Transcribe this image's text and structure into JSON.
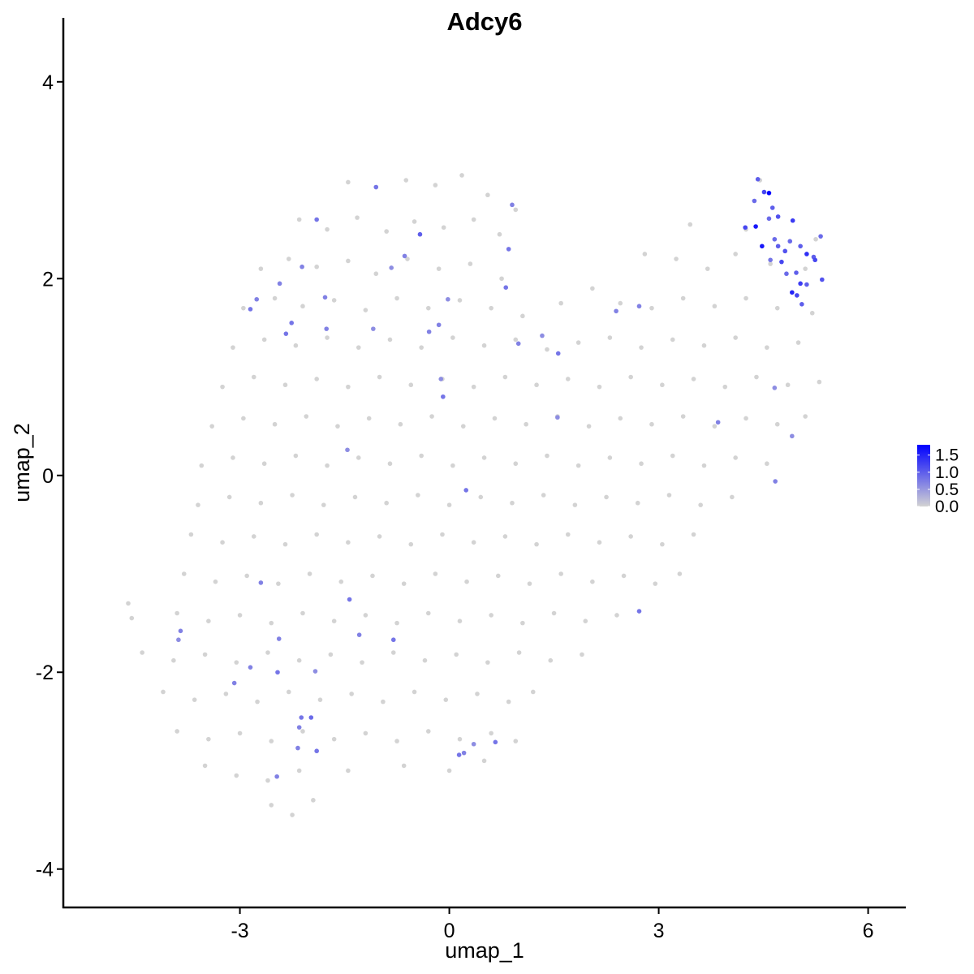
{
  "chart_data": {
    "type": "scatter",
    "title": "Adcy6",
    "xlabel": "umap_1",
    "ylabel": "umap_2",
    "xlim": [
      -5.53,
      6.54
    ],
    "ylim": [
      -4.39,
      4.65
    ],
    "x_ticks": [
      "-3",
      "0",
      "3",
      "6"
    ],
    "y_ticks": [
      "-4",
      "-2",
      "0",
      "2",
      "4"
    ],
    "grid": false,
    "legend": {
      "placement": "right",
      "type": "colorbar",
      "labels": [
        "1.5",
        "1.0",
        "0.5",
        "0.0"
      ],
      "low_color": "#d3d3d3",
      "high_color": "#0000ff",
      "range": [
        0,
        1.8
      ]
    },
    "note_points": "gray points = expression 0 (sampled); colored points = [x, y, expression]",
    "gray_points": [
      [
        -1.45,
        2.98
      ],
      [
        -1.05,
        2.93
      ],
      [
        -0.62,
        3.0
      ],
      [
        -0.2,
        2.95
      ],
      [
        0.18,
        3.05
      ],
      [
        0.55,
        2.85
      ],
      [
        0.95,
        2.7
      ],
      [
        4.45,
        3.0
      ],
      [
        -2.15,
        2.6
      ],
      [
        -1.75,
        2.5
      ],
      [
        -1.32,
        2.62
      ],
      [
        -0.9,
        2.48
      ],
      [
        -0.5,
        2.58
      ],
      [
        -0.08,
        2.52
      ],
      [
        0.35,
        2.6
      ],
      [
        0.72,
        2.45
      ],
      [
        3.45,
        2.55
      ],
      [
        4.25,
        2.5
      ],
      [
        5.25,
        2.4
      ],
      [
        -2.7,
        2.1
      ],
      [
        -2.3,
        2.2
      ],
      [
        -1.9,
        2.12
      ],
      [
        -1.45,
        2.18
      ],
      [
        -1.05,
        2.05
      ],
      [
        -0.6,
        2.2
      ],
      [
        -0.15,
        2.1
      ],
      [
        0.3,
        2.15
      ],
      [
        0.75,
        2.0
      ],
      [
        2.8,
        2.25
      ],
      [
        3.25,
        2.2
      ],
      [
        3.7,
        2.1
      ],
      [
        4.1,
        2.25
      ],
      [
        4.6,
        2.15
      ],
      [
        5.1,
        2.1
      ],
      [
        -2.95,
        1.7
      ],
      [
        -2.5,
        1.8
      ],
      [
        -2.1,
        1.72
      ],
      [
        -1.65,
        1.78
      ],
      [
        -1.2,
        1.68
      ],
      [
        -0.75,
        1.8
      ],
      [
        -0.3,
        1.7
      ],
      [
        0.15,
        1.78
      ],
      [
        0.6,
        1.7
      ],
      [
        1.05,
        1.62
      ],
      [
        1.6,
        1.75
      ],
      [
        2.05,
        1.9
      ],
      [
        2.45,
        1.75
      ],
      [
        2.9,
        1.7
      ],
      [
        3.35,
        1.8
      ],
      [
        3.8,
        1.72
      ],
      [
        4.25,
        1.8
      ],
      [
        4.7,
        1.7
      ],
      [
        5.2,
        1.65
      ],
      [
        -3.1,
        1.3
      ],
      [
        -2.65,
        1.38
      ],
      [
        -2.2,
        1.32
      ],
      [
        -1.75,
        1.4
      ],
      [
        -1.3,
        1.3
      ],
      [
        -0.85,
        1.38
      ],
      [
        -0.4,
        1.3
      ],
      [
        0.05,
        1.4
      ],
      [
        0.5,
        1.32
      ],
      [
        0.95,
        1.38
      ],
      [
        1.4,
        1.28
      ],
      [
        1.85,
        1.35
      ],
      [
        2.3,
        1.4
      ],
      [
        2.75,
        1.3
      ],
      [
        3.2,
        1.38
      ],
      [
        3.65,
        1.32
      ],
      [
        4.1,
        1.4
      ],
      [
        4.55,
        1.3
      ],
      [
        5.0,
        1.35
      ],
      [
        -3.25,
        0.9
      ],
      [
        -2.8,
        1.0
      ],
      [
        -2.35,
        0.92
      ],
      [
        -1.9,
        0.98
      ],
      [
        -1.45,
        0.9
      ],
      [
        -1.0,
        1.0
      ],
      [
        -0.55,
        0.92
      ],
      [
        -0.1,
        0.98
      ],
      [
        0.35,
        0.9
      ],
      [
        0.8,
        1.0
      ],
      [
        1.25,
        0.92
      ],
      [
        1.7,
        0.98
      ],
      [
        2.15,
        0.9
      ],
      [
        2.6,
        1.0
      ],
      [
        3.05,
        0.92
      ],
      [
        3.5,
        0.98
      ],
      [
        3.95,
        0.9
      ],
      [
        4.4,
        1.0
      ],
      [
        4.85,
        0.92
      ],
      [
        5.3,
        0.95
      ],
      [
        -3.4,
        0.5
      ],
      [
        -2.95,
        0.58
      ],
      [
        -2.5,
        0.52
      ],
      [
        -2.05,
        0.6
      ],
      [
        -1.6,
        0.5
      ],
      [
        -1.15,
        0.58
      ],
      [
        -0.7,
        0.52
      ],
      [
        -0.25,
        0.6
      ],
      [
        0.2,
        0.5
      ],
      [
        0.65,
        0.58
      ],
      [
        1.1,
        0.52
      ],
      [
        1.55,
        0.6
      ],
      [
        2.0,
        0.5
      ],
      [
        2.45,
        0.58
      ],
      [
        2.9,
        0.52
      ],
      [
        3.35,
        0.6
      ],
      [
        3.8,
        0.5
      ],
      [
        4.25,
        0.58
      ],
      [
        4.7,
        0.52
      ],
      [
        5.1,
        0.6
      ],
      [
        -3.55,
        0.1
      ],
      [
        -3.1,
        0.18
      ],
      [
        -2.65,
        0.12
      ],
      [
        -2.2,
        0.2
      ],
      [
        -1.75,
        0.1
      ],
      [
        -1.3,
        0.18
      ],
      [
        -0.85,
        0.12
      ],
      [
        -0.4,
        0.2
      ],
      [
        0.05,
        0.1
      ],
      [
        0.5,
        0.18
      ],
      [
        0.95,
        0.12
      ],
      [
        1.4,
        0.2
      ],
      [
        1.85,
        0.1
      ],
      [
        2.3,
        0.18
      ],
      [
        2.75,
        0.12
      ],
      [
        3.2,
        0.2
      ],
      [
        3.65,
        0.1
      ],
      [
        4.1,
        0.18
      ],
      [
        4.55,
        0.12
      ],
      [
        -3.6,
        -0.3
      ],
      [
        -3.15,
        -0.22
      ],
      [
        -2.7,
        -0.28
      ],
      [
        -2.25,
        -0.2
      ],
      [
        -1.8,
        -0.3
      ],
      [
        -1.35,
        -0.22
      ],
      [
        -0.9,
        -0.28
      ],
      [
        -0.45,
        -0.2
      ],
      [
        0.0,
        -0.3
      ],
      [
        0.45,
        -0.22
      ],
      [
        0.9,
        -0.28
      ],
      [
        1.35,
        -0.2
      ],
      [
        1.8,
        -0.3
      ],
      [
        2.25,
        -0.22
      ],
      [
        2.7,
        -0.28
      ],
      [
        3.15,
        -0.2
      ],
      [
        3.6,
        -0.3
      ],
      [
        4.05,
        -0.22
      ],
      [
        -3.7,
        -0.6
      ],
      [
        -3.25,
        -0.68
      ],
      [
        -2.8,
        -0.62
      ],
      [
        -2.35,
        -0.7
      ],
      [
        -1.9,
        -0.6
      ],
      [
        -1.45,
        -0.68
      ],
      [
        -1.0,
        -0.62
      ],
      [
        -0.55,
        -0.7
      ],
      [
        -0.1,
        -0.6
      ],
      [
        0.35,
        -0.68
      ],
      [
        0.8,
        -0.62
      ],
      [
        1.25,
        -0.7
      ],
      [
        1.7,
        -0.6
      ],
      [
        2.15,
        -0.68
      ],
      [
        2.6,
        -0.62
      ],
      [
        3.05,
        -0.7
      ],
      [
        3.5,
        -0.6
      ],
      [
        -3.8,
        -1.0
      ],
      [
        -3.35,
        -1.08
      ],
      [
        -2.9,
        -1.02
      ],
      [
        -2.45,
        -1.1
      ],
      [
        -2.0,
        -1.0
      ],
      [
        -1.55,
        -1.08
      ],
      [
        -1.1,
        -1.02
      ],
      [
        -0.65,
        -1.1
      ],
      [
        -0.2,
        -1.0
      ],
      [
        0.25,
        -1.08
      ],
      [
        0.7,
        -1.02
      ],
      [
        1.15,
        -1.1
      ],
      [
        1.6,
        -1.0
      ],
      [
        2.05,
        -1.08
      ],
      [
        2.5,
        -1.02
      ],
      [
        2.95,
        -1.1
      ],
      [
        3.3,
        -1.0
      ],
      [
        -4.6,
        -1.3
      ],
      [
        -4.55,
        -1.45
      ],
      [
        -3.9,
        -1.4
      ],
      [
        -3.45,
        -1.48
      ],
      [
        -3.0,
        -1.42
      ],
      [
        -2.55,
        -1.5
      ],
      [
        -2.1,
        -1.4
      ],
      [
        -1.65,
        -1.48
      ],
      [
        -1.2,
        -1.42
      ],
      [
        -0.75,
        -1.5
      ],
      [
        -0.3,
        -1.4
      ],
      [
        0.15,
        -1.48
      ],
      [
        0.6,
        -1.42
      ],
      [
        1.05,
        -1.5
      ],
      [
        1.5,
        -1.4
      ],
      [
        1.95,
        -1.48
      ],
      [
        2.4,
        -1.42
      ],
      [
        -4.4,
        -1.8
      ],
      [
        -3.95,
        -1.88
      ],
      [
        -3.5,
        -1.82
      ],
      [
        -3.05,
        -1.9
      ],
      [
        -2.6,
        -1.8
      ],
      [
        -2.15,
        -1.88
      ],
      [
        -1.7,
        -1.82
      ],
      [
        -1.25,
        -1.9
      ],
      [
        -0.8,
        -1.8
      ],
      [
        -0.35,
        -1.88
      ],
      [
        0.1,
        -1.82
      ],
      [
        0.55,
        -1.9
      ],
      [
        1.0,
        -1.8
      ],
      [
        1.45,
        -1.88
      ],
      [
        1.9,
        -1.82
      ],
      [
        -4.1,
        -2.2
      ],
      [
        -3.65,
        -2.28
      ],
      [
        -3.2,
        -2.22
      ],
      [
        -2.75,
        -2.3
      ],
      [
        -2.3,
        -2.2
      ],
      [
        -1.85,
        -2.28
      ],
      [
        -1.4,
        -2.22
      ],
      [
        -0.95,
        -2.3
      ],
      [
        -0.5,
        -2.2
      ],
      [
        -0.05,
        -2.28
      ],
      [
        0.4,
        -2.22
      ],
      [
        0.85,
        -2.3
      ],
      [
        1.2,
        -2.2
      ],
      [
        -3.9,
        -2.6
      ],
      [
        -3.45,
        -2.68
      ],
      [
        -3.0,
        -2.62
      ],
      [
        -2.55,
        -2.7
      ],
      [
        -2.1,
        -2.6
      ],
      [
        -1.65,
        -2.68
      ],
      [
        -1.2,
        -2.62
      ],
      [
        -0.75,
        -2.7
      ],
      [
        -0.3,
        -2.6
      ],
      [
        0.15,
        -2.68
      ],
      [
        0.6,
        -2.62
      ],
      [
        0.95,
        -2.7
      ],
      [
        -3.5,
        -2.95
      ],
      [
        -3.05,
        -3.05
      ],
      [
        -2.6,
        -3.1
      ],
      [
        -2.15,
        -3.0
      ],
      [
        -1.45,
        -3.0
      ],
      [
        -0.65,
        -2.95
      ],
      [
        0.0,
        -3.0
      ],
      [
        0.5,
        -2.9
      ],
      [
        -2.55,
        -3.35
      ],
      [
        -2.25,
        -3.45
      ],
      [
        -1.95,
        -3.3
      ]
    ],
    "expressing_points": [
      [
        4.42,
        3.01,
        1.0
      ],
      [
        4.51,
        2.88,
        1.2
      ],
      [
        4.58,
        2.87,
        1.8
      ],
      [
        4.37,
        2.79,
        0.9
      ],
      [
        4.63,
        2.72,
        1.0
      ],
      [
        4.71,
        2.63,
        1.1
      ],
      [
        4.58,
        2.61,
        0.9
      ],
      [
        4.39,
        2.53,
        1.6
      ],
      [
        4.24,
        2.52,
        1.2
      ],
      [
        4.92,
        2.59,
        1.3
      ],
      [
        4.48,
        2.33,
        1.6
      ],
      [
        4.71,
        2.33,
        1.0
      ],
      [
        4.88,
        2.38,
        0.9
      ],
      [
        5.03,
        2.33,
        1.0
      ],
      [
        5.12,
        2.25,
        1.4
      ],
      [
        5.22,
        2.22,
        1.0
      ],
      [
        5.24,
        2.19,
        1.2
      ],
      [
        5.32,
        2.43,
        0.9
      ],
      [
        5.34,
        1.99,
        1.1
      ],
      [
        4.83,
        2.05,
        0.9
      ],
      [
        5.03,
        1.95,
        1.3
      ],
      [
        5.12,
        1.94,
        1.0
      ],
      [
        4.91,
        1.86,
        1.5
      ],
      [
        4.98,
        1.83,
        1.2
      ],
      [
        5.05,
        1.74,
        1.0
      ],
      [
        4.6,
        2.19,
        0.8
      ],
      [
        4.76,
        2.17,
        1.2
      ],
      [
        4.97,
        2.06,
        1.0
      ],
      [
        4.81,
        2.28,
        1.1
      ],
      [
        4.66,
        2.4,
        0.9
      ],
      [
        -1.05,
        2.93,
        0.8
      ],
      [
        -1.9,
        2.6,
        0.8
      ],
      [
        -0.42,
        2.45,
        1.0
      ],
      [
        -0.64,
        2.23,
        0.7
      ],
      [
        0.9,
        2.75,
        0.7
      ],
      [
        0.85,
        2.3,
        0.8
      ],
      [
        -0.83,
        2.11,
        0.6
      ],
      [
        -2.11,
        2.12,
        0.7
      ],
      [
        -2.43,
        1.95,
        0.7
      ],
      [
        -1.78,
        1.81,
        0.7
      ],
      [
        -2.76,
        1.79,
        0.7
      ],
      [
        -2.85,
        1.69,
        0.8
      ],
      [
        -2.26,
        1.55,
        0.8
      ],
      [
        -2.34,
        1.44,
        0.8
      ],
      [
        -1.76,
        1.49,
        0.7
      ],
      [
        -1.09,
        1.49,
        0.6
      ],
      [
        -0.15,
        1.53,
        0.7
      ],
      [
        -0.29,
        1.46,
        0.7
      ],
      [
        -0.02,
        1.79,
        0.6
      ],
      [
        0.81,
        1.91,
        0.8
      ],
      [
        0.99,
        1.34,
        0.7
      ],
      [
        1.33,
        1.42,
        0.6
      ],
      [
        1.56,
        1.24,
        0.8
      ],
      [
        2.39,
        1.67,
        0.7
      ],
      [
        2.72,
        1.72,
        0.7
      ],
      [
        -0.12,
        0.98,
        0.6
      ],
      [
        -0.09,
        0.8,
        0.8
      ],
      [
        1.55,
        0.59,
        0.6
      ],
      [
        3.85,
        0.54,
        0.7
      ],
      [
        4.66,
        0.89,
        0.6
      ],
      [
        4.91,
        0.4,
        0.6
      ],
      [
        4.67,
        -0.06,
        0.7
      ],
      [
        -1.46,
        0.26,
        0.6
      ],
      [
        0.24,
        -0.15,
        0.8
      ],
      [
        -2.7,
        -1.09,
        0.7
      ],
      [
        -1.43,
        -1.26,
        0.8
      ],
      [
        -1.29,
        -1.62,
        0.7
      ],
      [
        -0.8,
        -1.67,
        0.8
      ],
      [
        -3.85,
        -1.58,
        0.7
      ],
      [
        -3.88,
        -1.67,
        0.6
      ],
      [
        -2.44,
        -1.66,
        0.7
      ],
      [
        -2.85,
        -1.95,
        0.7
      ],
      [
        -3.08,
        -2.11,
        0.7
      ],
      [
        -2.46,
        -2.0,
        0.8
      ],
      [
        -1.92,
        -1.99,
        0.6
      ],
      [
        -2.12,
        -2.46,
        0.8
      ],
      [
        -1.98,
        -2.46,
        0.9
      ],
      [
        -2.15,
        -2.56,
        0.7
      ],
      [
        -2.17,
        -2.77,
        0.7
      ],
      [
        -1.9,
        -2.8,
        0.8
      ],
      [
        -2.47,
        -3.06,
        0.7
      ],
      [
        0.14,
        -2.84,
        0.8
      ],
      [
        0.21,
        -2.82,
        0.7
      ],
      [
        0.35,
        -2.73,
        0.6
      ],
      [
        0.66,
        -2.71,
        0.8
      ],
      [
        2.72,
        -1.38,
        0.8
      ]
    ]
  }
}
